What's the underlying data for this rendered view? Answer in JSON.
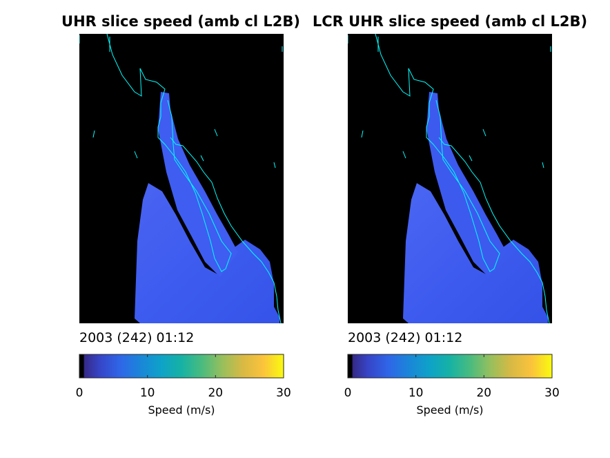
{
  "panels": [
    {
      "title": "UHR slice speed (amb cl L2B)",
      "date_label": "2003 (242) 01:12"
    },
    {
      "title": "LCR UHR slice speed (amb cl L2B)",
      "date_label": "2003 (242) 01:12"
    }
  ],
  "colorbar": {
    "label": "Speed (m/s)",
    "ticks": [
      "0",
      "10",
      "20",
      "30"
    ],
    "range": [
      0,
      30
    ],
    "colormap": "parula"
  },
  "colors": {
    "background": "#000000",
    "coastline": "#00ffff",
    "wind_field": "#3f5ef0"
  },
  "chart_data": [
    {
      "type": "heatmap",
      "title": "UHR slice speed (amb cl L2B)",
      "subtitle": "2003 (242) 01:12",
      "colorbar_label": "Speed (m/s)",
      "colorbar_range": [
        0,
        30
      ],
      "colorbar_ticks": [
        0,
        10,
        20,
        30
      ],
      "typical_value_range": [
        3,
        8
      ]
    },
    {
      "type": "heatmap",
      "title": "LCR UHR slice speed (amb cl L2B)",
      "subtitle": "2003 (242) 01:12",
      "colorbar_label": "Speed (m/s)",
      "colorbar_range": [
        0,
        30
      ],
      "colorbar_ticks": [
        0,
        10,
        20,
        30
      ],
      "typical_value_range": [
        3,
        8
      ]
    }
  ]
}
